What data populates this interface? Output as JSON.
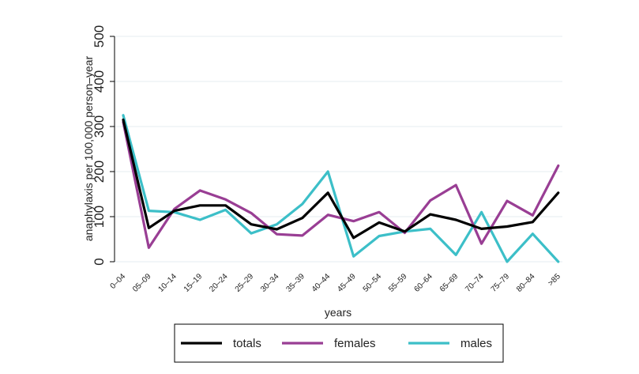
{
  "chart_data": {
    "type": "line",
    "categories": [
      "0–04",
      "05–09",
      "10–14",
      "15–19",
      "20–24",
      "25–29",
      "30–34",
      "35–39",
      "40–44",
      "45–49",
      "50–54",
      "55–59",
      "60–64",
      "65–69",
      "70–74",
      "75–79",
      "80–84",
      ">85"
    ],
    "series": [
      {
        "name": "totals",
        "color": "#000000",
        "values": [
          315,
          75,
          113,
          125,
          125,
          83,
          72,
          97,
          153,
          53,
          87,
          67,
          105,
          93,
          73,
          78,
          88,
          153
        ]
      },
      {
        "name": "females",
        "color": "#993e94",
        "values": [
          310,
          31,
          117,
          158,
          138,
          108,
          61,
          58,
          104,
          90,
          110,
          64,
          136,
          170,
          40,
          135,
          103,
          213
        ]
      },
      {
        "name": "males",
        "color": "#3cbfc8",
        "values": [
          325,
          113,
          110,
          93,
          115,
          63,
          83,
          128,
          200,
          12,
          57,
          67,
          73,
          15,
          110,
          0,
          62,
          0
        ]
      }
    ],
    "xlabel": "years",
    "ylabel": "anaphylaxis per 100,000 person–year",
    "ylim": [
      0,
      500
    ],
    "yticks": [
      0,
      100,
      200,
      300,
      400,
      500
    ],
    "grid": true,
    "legend": "bottom"
  }
}
